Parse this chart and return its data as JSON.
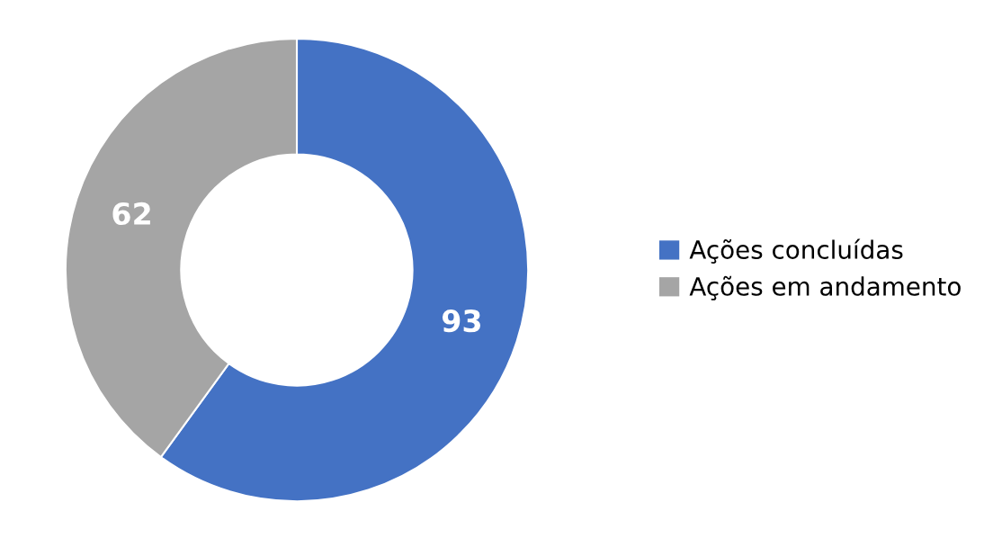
{
  "chart_data": {
    "type": "donut",
    "categories": [
      "Ações concluídas",
      "Ações em andamento"
    ],
    "values": [
      93,
      62
    ],
    "colors": [
      "#4472c4",
      "#a5a5a5"
    ],
    "data_labels": true,
    "legend": "right"
  }
}
